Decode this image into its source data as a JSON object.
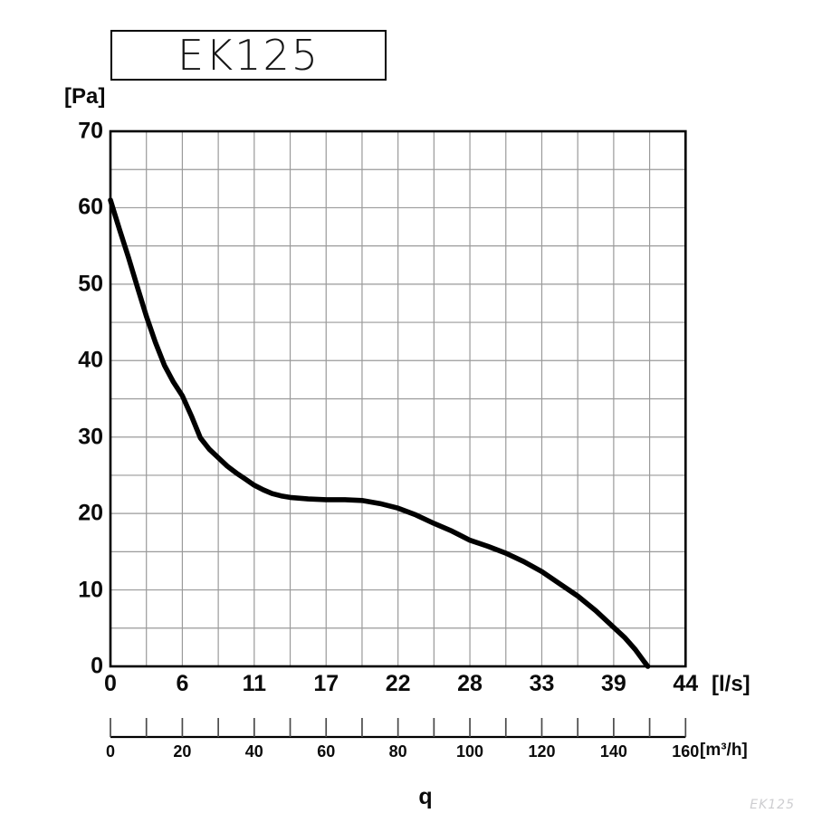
{
  "title_box": {
    "label": "EK125"
  },
  "watermark": "EK125",
  "chart_data": {
    "type": "line",
    "title": "EK125",
    "ylabel": "[Pa]",
    "xlabel": "q",
    "x_unit_primary": "[l/s]",
    "x_unit_secondary": "[m³/h]",
    "ylim": [
      0,
      70
    ],
    "y_ticks": [
      0,
      10,
      20,
      30,
      40,
      50,
      60,
      70
    ],
    "grid": {
      "on": true,
      "x_divisions": 16,
      "y_divisions": 14
    },
    "x_axis_primary": {
      "unit": "[l/s]",
      "tick_labels": [
        "0",
        "6",
        "11",
        "17",
        "22",
        "28",
        "33",
        "39",
        "44"
      ]
    },
    "x_axis_secondary": {
      "unit": "[m³/h]",
      "min": 0,
      "max": 160,
      "tick_step": 10,
      "labels": [
        0,
        20,
        40,
        60,
        80,
        100,
        120,
        140,
        160
      ]
    },
    "legend": "none",
    "series": [
      {
        "name": "EK125",
        "x_unit": "m³/h",
        "y_unit": "Pa",
        "points": [
          [
            0,
            61
          ],
          [
            2.5,
            57.2
          ],
          [
            5,
            53.5
          ],
          [
            7.5,
            49.6
          ],
          [
            10,
            45.8
          ],
          [
            12.5,
            42.4
          ],
          [
            15,
            39.4
          ],
          [
            17.5,
            37.2
          ],
          [
            20,
            35.4
          ],
          [
            22.5,
            32.8
          ],
          [
            25,
            29.9
          ],
          [
            27.5,
            28.4
          ],
          [
            30,
            27.3
          ],
          [
            32.5,
            26.2
          ],
          [
            35,
            25.3
          ],
          [
            37.5,
            24.5
          ],
          [
            40,
            23.7
          ],
          [
            42.5,
            23.1
          ],
          [
            45,
            22.6
          ],
          [
            47.5,
            22.3
          ],
          [
            50,
            22.1
          ],
          [
            55,
            21.9
          ],
          [
            60,
            21.8
          ],
          [
            65,
            21.8
          ],
          [
            70,
            21.7
          ],
          [
            75,
            21.3
          ],
          [
            80,
            20.7
          ],
          [
            85,
            19.8
          ],
          [
            90,
            18.7
          ],
          [
            95,
            17.7
          ],
          [
            100,
            16.5
          ],
          [
            105,
            15.7
          ],
          [
            110,
            14.8
          ],
          [
            115,
            13.7
          ],
          [
            120,
            12.4
          ],
          [
            125,
            10.8
          ],
          [
            130,
            9.2
          ],
          [
            135,
            7.3
          ],
          [
            140,
            5.1
          ],
          [
            143,
            3.8
          ],
          [
            146,
            2.2
          ],
          [
            148.5,
            0.6
          ],
          [
            149.5,
            0
          ]
        ]
      }
    ],
    "colors": {
      "curve": "#000000",
      "grid": "#9a9a9a",
      "frame": "#000000",
      "secondary_axis": "#000000",
      "secondary_ticks": "#4a4a4a"
    }
  }
}
